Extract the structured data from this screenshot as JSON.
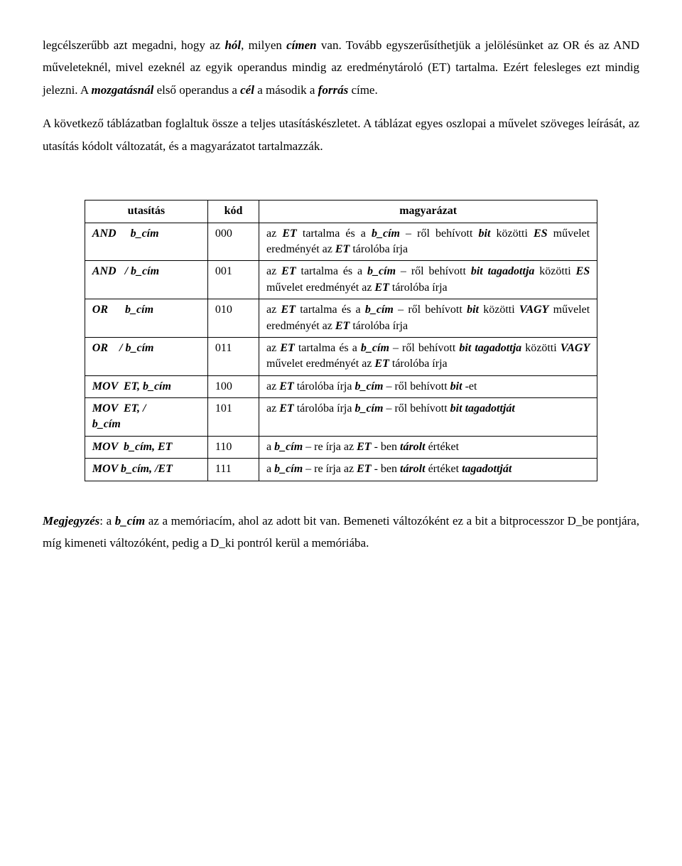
{
  "para1_html": "legcélszerűbb azt megadni, hogy az <em class='bi'>hól</em>, milyen <em class='bi'>címen</em> van. Tovább egyszerűsíthetjük a jelölésünket az OR és az AND műveleteknél, mivel ezeknél az egyik operandus mindig az eredménytároló (ET) tartalma. Ezért felesleges ezt mindig jelezni. A <em class='bi'>mozgatásnál</em> első operandus a <em class='bi'>cél</em> a második a <em class='bi'>forrás</em> címe.",
  "para2_html": "A következő táblázatban foglaltuk össze a teljes utasításkészletet. A táblázat egyes oszlopai a művelet szöveges leírását, az utasítás kódolt változatát, és a magyarázatot tartalmazzák.",
  "table": {
    "headers": [
      "utasítás",
      "kód",
      "magyarázat"
    ],
    "rows": [
      {
        "instr": "AND     b_cím",
        "code": "000",
        "expl_html": "az <em class='bi'>ET</em> tartalma és a <em class='bi'>b_cím</em> – ről behívott <em class='bi'>bit</em> közötti <em class='bi'>ES</em> művelet eredményét az <em class='bi'>ET</em> tárolóba írja"
      },
      {
        "instr": "AND   / b_cím",
        "code": "001",
        "expl_html": "az <em class='bi'>ET</em> tartalma és a <em class='bi'>b_cím</em> – ről behívott <em class='bi'>bit tagadottja</em> közötti <em class='bi'>ES</em> művelet eredményét az <em class='bi'>ET</em> tárolóba írja"
      },
      {
        "instr": "OR      b_cím",
        "code": "010",
        "expl_html": "az <em class='bi'>ET</em> tartalma és a <em class='bi'>b_cím</em> – ről behívott <em class='bi'>bit</em> közötti <em class='bi'>VAGY</em> művelet eredményét az <em class='bi'>ET</em> tárolóba írja"
      },
      {
        "instr": "OR    / b_cím",
        "code": "011",
        "expl_html": "az <em class='bi'>ET</em> tartalma és a <em class='bi'>b_cím</em> – ről behívott <em class='bi'>bit tagadottja</em> közötti <em class='bi'>VAGY</em> művelet eredményét az <em class='bi'>ET</em> tárolóba írja"
      },
      {
        "instr": "MOV  ET, b_cím",
        "code": "100",
        "expl_html": "az <em class='bi'>ET</em> tárolóba írja  <em class='bi'>b_cím</em> – ről behívott <em class='bi'>bit</em> -et"
      },
      {
        "instr": "MOV  ET, /\nb_cím",
        "code": "101",
        "expl_html": "az <em class='bi'>ET</em> tárolóba írja  <em class='bi'>b_cím</em> – ről behívott <em class='bi'>bit tagadottját</em>"
      },
      {
        "instr": "MOV  b_cím, ET",
        "code": "110",
        "expl_html": "a <em class='bi'>b_cím</em> – re írja az <em class='bi'>ET</em> - ben <em class='bi'>tárolt</em> értéket"
      },
      {
        "instr": "MOV b_cím, /ET",
        "code": "111",
        "expl_html": "a <em class='bi'>b_cím</em> – re írja az <em class='bi'>ET</em> - ben <em class='bi'>tárolt</em> értéket <em class='bi'>tagadottját</em>"
      }
    ]
  },
  "note_html": "<em class='bi'>Megjegyzés</em>: a <em class='bi'>b_cím</em> az a memóriacím, ahol az adott bit van. Bemeneti változóként ez a bit a bitprocesszor D_be pontjára, míg kimeneti változóként, pedig a D_ki pontról kerül a memóriába."
}
